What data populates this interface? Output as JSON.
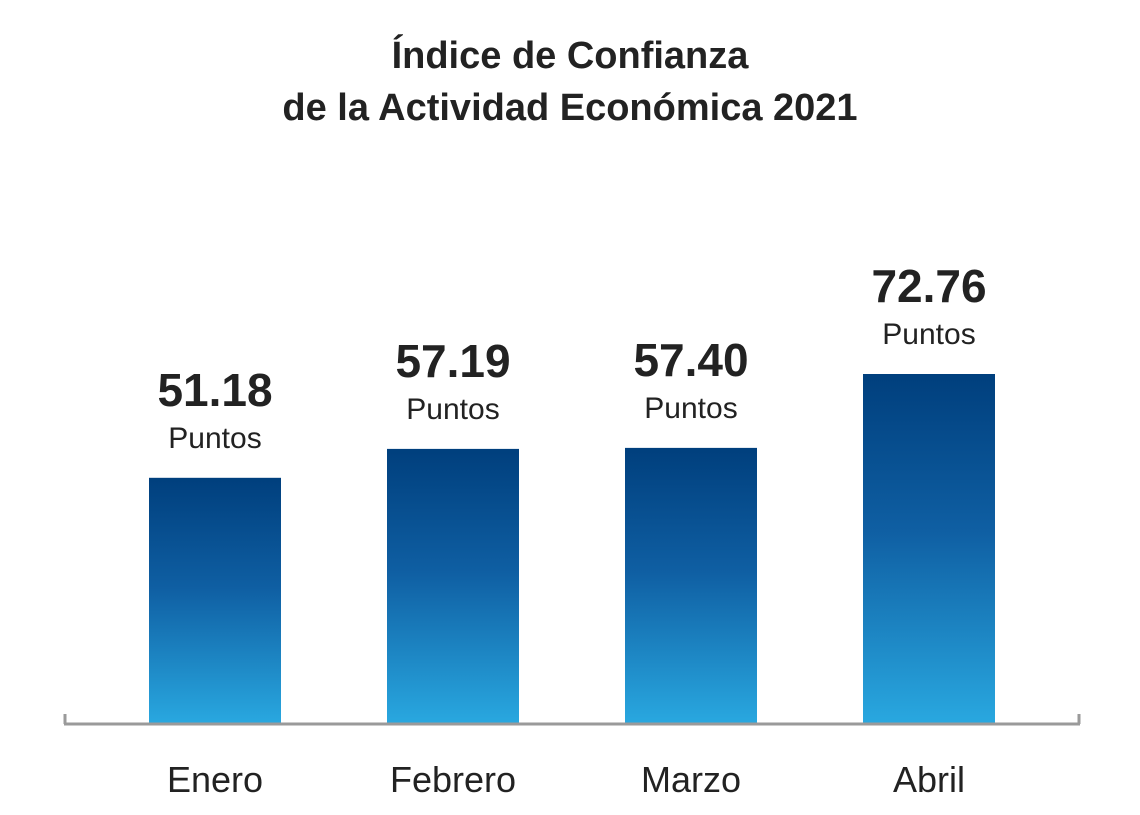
{
  "chart_data": {
    "type": "bar",
    "title": [
      "Índice de Confianza",
      "de la Actividad Económica 2021"
    ],
    "categories": [
      "Enero",
      "Febrero",
      "Marzo",
      "Abril"
    ],
    "values": [
      51.18,
      57.19,
      57.4,
      72.76
    ],
    "value_labels": [
      "51.18",
      "57.19",
      "57.40",
      "72.76"
    ],
    "unit_label": "Puntos",
    "grid": false,
    "legend": "none",
    "colors": {
      "bar_top": "#003f7d",
      "bar_bottom": "#29a8e0",
      "axis": "#9a9a9a",
      "text": "#222222"
    }
  }
}
